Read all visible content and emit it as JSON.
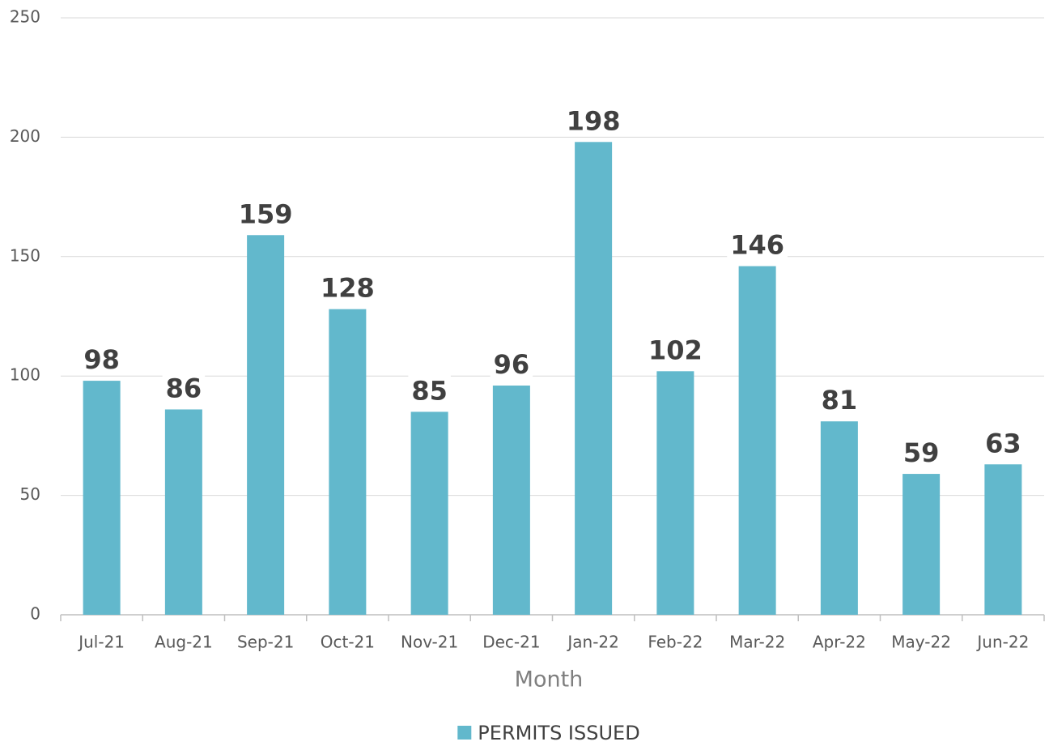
{
  "chart_data": {
    "type": "bar",
    "x_label": "Month",
    "categories": [
      "Jul-21",
      "Aug-21",
      "Sep-21",
      "Oct-21",
      "Nov-21",
      "Dec-21",
      "Jan-22",
      "Feb-22",
      "Mar-22",
      "Apr-22",
      "May-22",
      "Jun-22"
    ],
    "series": [
      {
        "name": "PERMITS ISSUED",
        "color": "#62b8cc",
        "values": [
          98,
          86,
          159,
          128,
          85,
          96,
          198,
          102,
          146,
          81,
          59,
          63
        ]
      }
    ],
    "ylim": [
      0,
      250
    ],
    "yticks": [
      0,
      50,
      100,
      150,
      200,
      250
    ],
    "grid": true,
    "legend": "bottom"
  }
}
